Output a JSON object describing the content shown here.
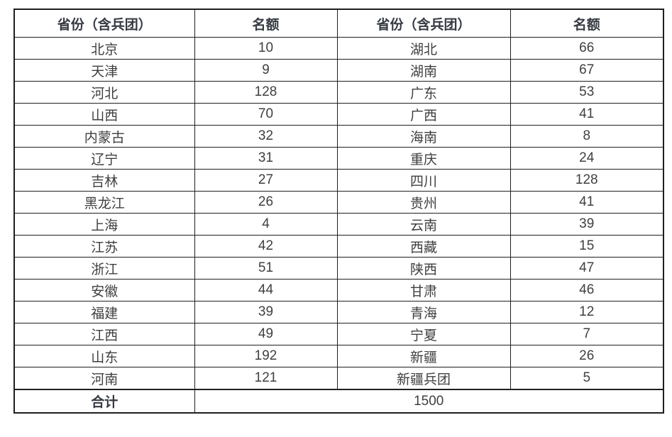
{
  "table": {
    "header": {
      "col1": "省份（含兵团）",
      "col2": "名额",
      "col3": "省份（含兵团）",
      "col4": "名额"
    },
    "rows": [
      {
        "left_province": "北京",
        "left_quota": "10",
        "right_province": "湖北",
        "right_quota": "66"
      },
      {
        "left_province": "天津",
        "left_quota": "9",
        "right_province": "湖南",
        "right_quota": "67"
      },
      {
        "left_province": "河北",
        "left_quota": "128",
        "right_province": "广东",
        "right_quota": "53"
      },
      {
        "left_province": "山西",
        "left_quota": "70",
        "right_province": "广西",
        "right_quota": "41"
      },
      {
        "left_province": "内蒙古",
        "left_quota": "32",
        "right_province": "海南",
        "right_quota": "8"
      },
      {
        "left_province": "辽宁",
        "left_quota": "31",
        "right_province": "重庆",
        "right_quota": "24"
      },
      {
        "left_province": "吉林",
        "left_quota": "27",
        "right_province": "四川",
        "right_quota": "128"
      },
      {
        "left_province": "黑龙江",
        "left_quota": "26",
        "right_province": "贵州",
        "right_quota": "41"
      },
      {
        "left_province": "上海",
        "left_quota": "4",
        "right_province": "云南",
        "right_quota": "39"
      },
      {
        "left_province": "江苏",
        "left_quota": "42",
        "right_province": "西藏",
        "right_quota": "15"
      },
      {
        "left_province": "浙江",
        "left_quota": "51",
        "right_province": "陕西",
        "right_quota": "47"
      },
      {
        "left_province": "安徽",
        "left_quota": "44",
        "right_province": "甘肃",
        "right_quota": "46"
      },
      {
        "left_province": "福建",
        "left_quota": "39",
        "right_province": "青海",
        "right_quota": "12"
      },
      {
        "left_province": "江西",
        "left_quota": "49",
        "right_province": "宁夏",
        "right_quota": "7"
      },
      {
        "left_province": "山东",
        "left_quota": "192",
        "right_province": "新疆",
        "right_quota": "26"
      },
      {
        "left_province": "河南",
        "left_quota": "121",
        "right_province": "新疆兵团",
        "right_quota": "5"
      }
    ],
    "total": {
      "label": "合计",
      "value": "1500"
    },
    "colors": {
      "border": "#1f1f1f",
      "header_text": "#353a42",
      "body_text": "#3f3f3f",
      "background": "#ffffff"
    }
  }
}
